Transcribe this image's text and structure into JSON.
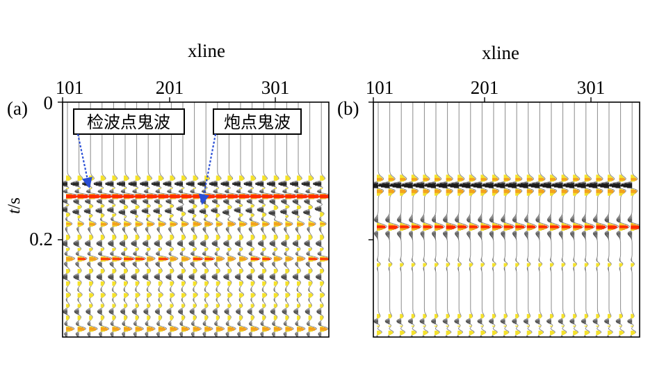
{
  "figure": {
    "panels": [
      {
        "id": "a",
        "panel_label": "(a)",
        "x_axis_title": "xline",
        "y_axis_title_italic": "t",
        "y_axis_title_rest": "/s",
        "x_tick_labels": [
          "101",
          "201",
          "301"
        ],
        "y_tick_labels": [
          "0",
          "0.2"
        ],
        "annotations": [
          {
            "text": "检波点鬼波"
          },
          {
            "text": "炮点鬼波"
          }
        ]
      },
      {
        "id": "b",
        "panel_label": "(b)",
        "x_axis_title": "xline",
        "x_tick_labels": [
          "101",
          "201",
          "301"
        ],
        "y_tick_labels": [
          "",
          ""
        ],
        "annotations": []
      }
    ],
    "colors": {
      "negative_lobe": "#1a1a1a",
      "positive_strong": "#ff2a00",
      "positive_mid": "#f2a21d",
      "positive_weak": "#f5e22a",
      "arrow": "#2a4fd6"
    }
  }
}
